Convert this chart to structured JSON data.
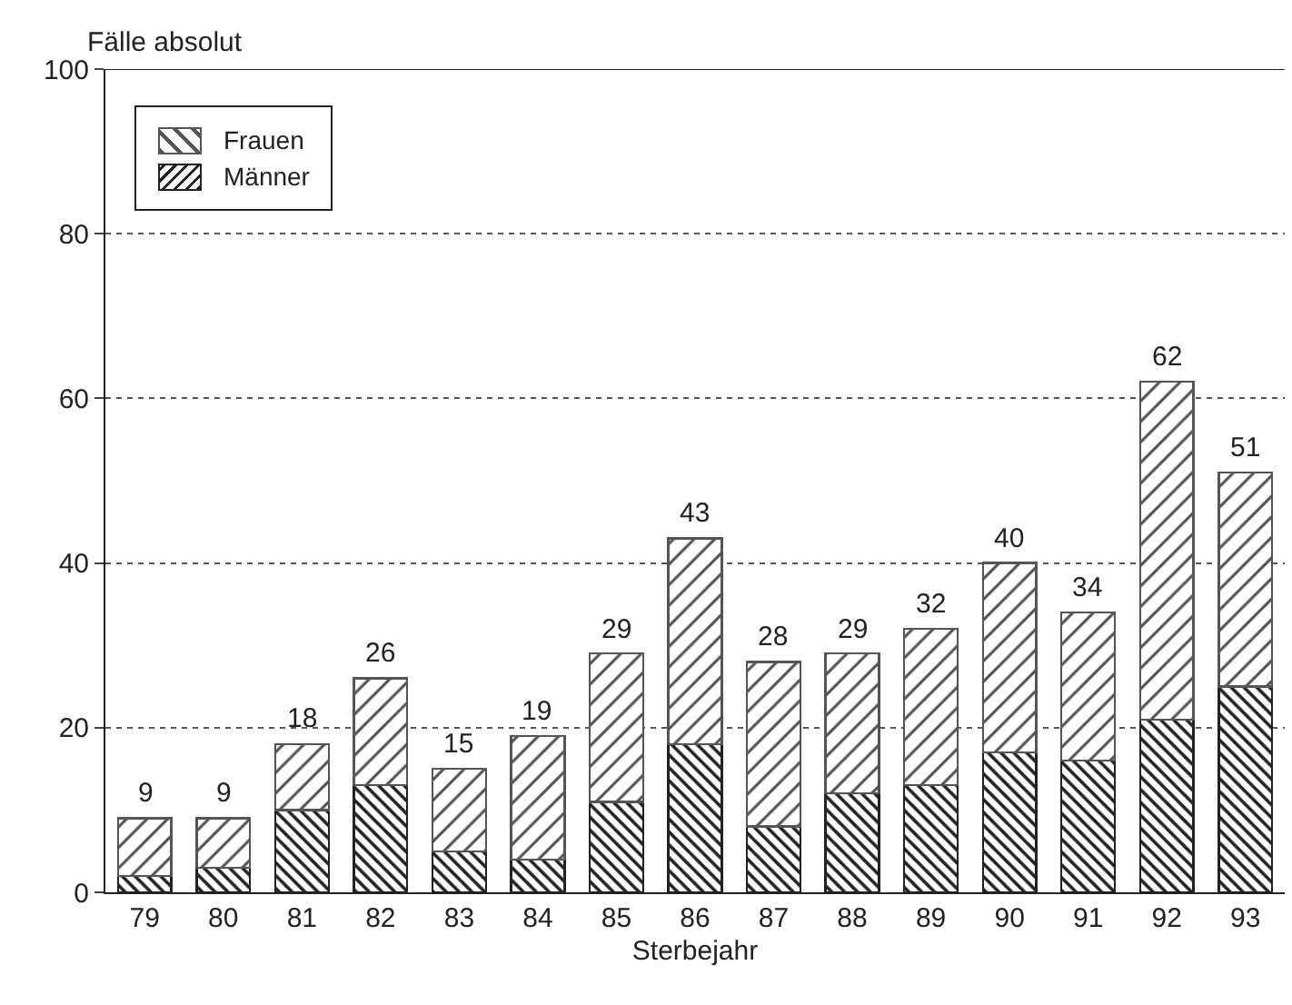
{
  "chart_data": {
    "type": "bar",
    "stacked": true,
    "ylabel": "Fälle absolut",
    "xlabel": "Sterbejahr",
    "categories": [
      "79",
      "80",
      "81",
      "82",
      "83",
      "84",
      "85",
      "86",
      "87",
      "88",
      "89",
      "90",
      "91",
      "92",
      "93"
    ],
    "series": [
      {
        "name": "Männer",
        "color": "#222222",
        "values": [
          2,
          3,
          10,
          13,
          5,
          4,
          11,
          18,
          8,
          12,
          13,
          17,
          16,
          21,
          25
        ]
      },
      {
        "name": "Frauen",
        "color": "#555555",
        "values": [
          7,
          6,
          8,
          13,
          10,
          15,
          18,
          25,
          20,
          17,
          19,
          23,
          18,
          41,
          26
        ]
      }
    ],
    "totals": [
      "9",
      "9",
      "18",
      "26",
      "15",
      "19",
      "29",
      "43",
      "28",
      "29",
      "32",
      "40",
      "34",
      "62",
      "51"
    ],
    "ylim": [
      0,
      100
    ],
    "yticks": [
      0,
      20,
      40,
      60,
      80,
      100
    ],
    "grid": "y",
    "legend": "top left"
  }
}
